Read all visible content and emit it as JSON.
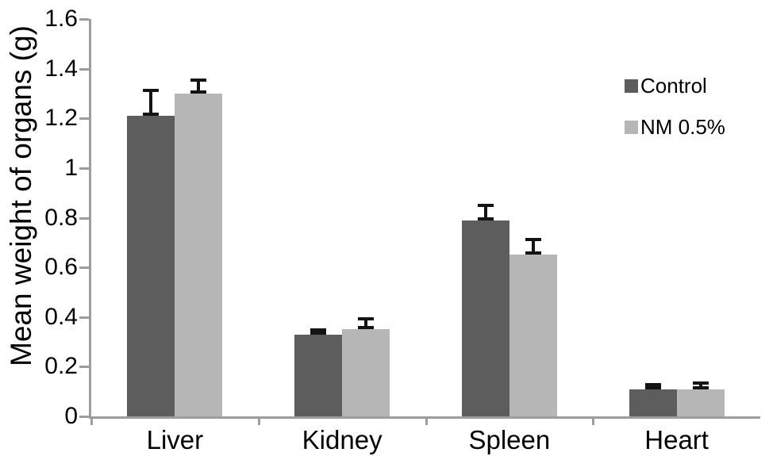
{
  "chart_data": {
    "type": "bar",
    "title": "",
    "ylabel": "Mean weight of organs (g)",
    "xlabel": "",
    "categories": [
      "Liver",
      "Kidney",
      "Spleen",
      "Heart"
    ],
    "series": [
      {
        "name": "Control",
        "color": "#5d5d5d",
        "values": [
          1.21,
          0.33,
          0.79,
          0.11
        ],
        "errors": [
          0.11,
          0.015,
          0.065,
          0.01
        ]
      },
      {
        "name": "NM 0.5%",
        "color": "#b6b6b6",
        "values": [
          1.3,
          0.35,
          0.65,
          0.11
        ],
        "errors": [
          0.06,
          0.05,
          0.07,
          0.03
        ]
      }
    ],
    "ylim": [
      0,
      1.6
    ],
    "yticks": [
      0,
      0.2,
      0.4,
      0.6,
      0.8,
      1,
      1.2,
      1.4,
      1.6
    ],
    "ytick_labels": [
      "0",
      "0.2",
      "0.4",
      "0.6",
      "0.8",
      "1",
      "1.2",
      "1.4",
      "1.6"
    ],
    "grid": false,
    "legend_position": "upper-right",
    "error_bars": true
  },
  "colors": {
    "axis": "#9d9d9d",
    "error_bar": "#141414",
    "text": "#000000",
    "background": "#ffffff"
  }
}
